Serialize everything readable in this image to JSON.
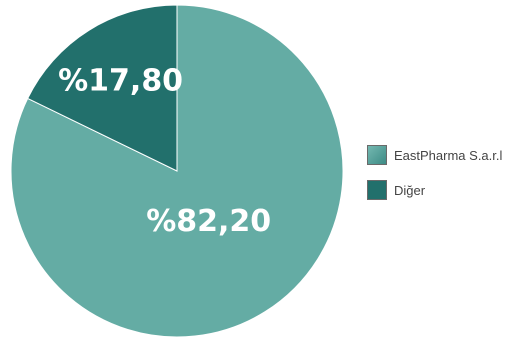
{
  "chart_data": {
    "type": "pie",
    "categories": [
      "EastPharma S.a.r.l",
      "Diğer"
    ],
    "values": [
      82.2,
      17.8
    ],
    "value_labels": [
      "%82,20",
      "%17,80"
    ],
    "colors": [
      "#64aca4",
      "#22706c"
    ],
    "legend": {
      "placement": "right",
      "items": [
        {
          "label": "EastPharma S.a.r.l",
          "color": "#64aca4"
        },
        {
          "label": "Diğer",
          "color": "#22706c"
        }
      ]
    }
  }
}
